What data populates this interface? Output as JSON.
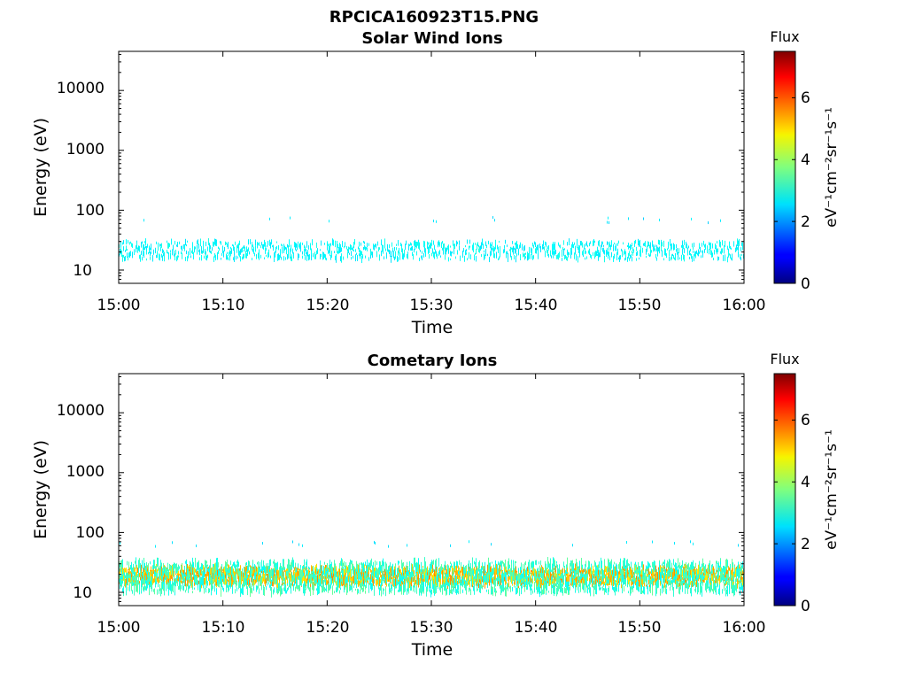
{
  "figure": {
    "title": "RPCICA160923T15.PNG"
  },
  "chart_data": [
    {
      "type": "heatmap",
      "title": "Solar Wind Ions",
      "xlabel": "Time",
      "ylabel": "Energy (eV)",
      "x_ticks": [
        "15:00",
        "15:10",
        "15:20",
        "15:30",
        "15:40",
        "15:50",
        "16:00"
      ],
      "xlim": [
        "15:00",
        "16:00"
      ],
      "y_scale": "log",
      "y_ticks": [
        "10",
        "100",
        "1000",
        "10000"
      ],
      "ylim": [
        6,
        45000
      ],
      "colorbar": {
        "title": "Flux",
        "label": "eV⁻¹cm⁻²sr⁻¹s⁻¹",
        "ticks": [
          "0",
          "2",
          "4",
          "6"
        ],
        "range": [
          0,
          7.5
        ],
        "colormap": "jet"
      },
      "features": [
        {
          "description": "main band",
          "energy_range_ev": [
            15,
            30
          ],
          "flux_level": 2.8,
          "time_range": [
            "15:00",
            "16:00"
          ]
        },
        {
          "description": "sparse scattered points",
          "energy_range_ev": [
            60,
            80
          ],
          "flux_level": 2.6
        }
      ]
    },
    {
      "type": "heatmap",
      "title": "Cometary Ions",
      "xlabel": "Time",
      "ylabel": "Energy (eV)",
      "x_ticks": [
        "15:00",
        "15:10",
        "15:20",
        "15:30",
        "15:40",
        "15:50",
        "16:00"
      ],
      "xlim": [
        "15:00",
        "16:00"
      ],
      "y_scale": "log",
      "y_ticks": [
        "10",
        "100",
        "1000",
        "10000"
      ],
      "ylim": [
        6,
        45000
      ],
      "colorbar": {
        "title": "Flux",
        "label": "eV⁻¹cm⁻²sr⁻¹s⁻¹",
        "ticks": [
          "0",
          "2",
          "4",
          "6"
        ],
        "range": [
          0,
          7.5
        ],
        "colormap": "jet"
      },
      "features": [
        {
          "description": "core band",
          "energy_range_ev": [
            14,
            25
          ],
          "flux_level": 5.2,
          "time_range": [
            "15:00",
            "16:00"
          ]
        },
        {
          "description": "band edges",
          "energy_range_ev": [
            10,
            32
          ],
          "flux_level": 3.2
        },
        {
          "description": "sparse scattered points",
          "energy_range_ev": [
            60,
            75
          ],
          "flux_level": 2.6
        }
      ]
    }
  ]
}
